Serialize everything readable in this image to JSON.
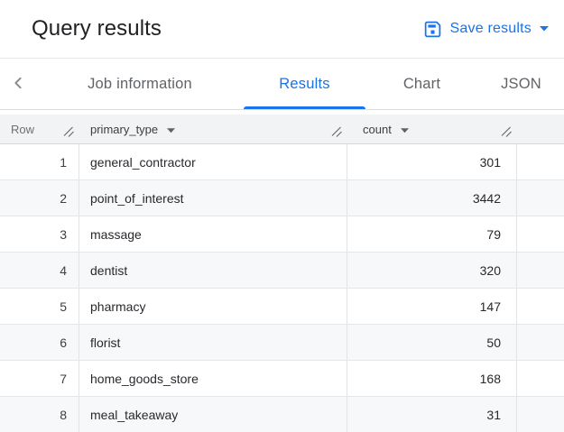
{
  "header": {
    "title": "Query results",
    "save_button_label": "Save results"
  },
  "tabs": [
    {
      "label": "Job information",
      "active": false
    },
    {
      "label": "Results",
      "active": true
    },
    {
      "label": "Chart",
      "active": false
    },
    {
      "label": "JSON",
      "active": false
    }
  ],
  "table": {
    "columns": [
      {
        "name": "Row",
        "sortable": false,
        "resizable": true
      },
      {
        "name": "primary_type",
        "sortable": true,
        "resizable": true
      },
      {
        "name": "count",
        "sortable": true,
        "resizable": true
      }
    ],
    "rows": [
      {
        "row": "1",
        "primary_type": "general_contractor",
        "count": "301"
      },
      {
        "row": "2",
        "primary_type": "point_of_interest",
        "count": "3442"
      },
      {
        "row": "3",
        "primary_type": "massage",
        "count": "79"
      },
      {
        "row": "4",
        "primary_type": "dentist",
        "count": "320"
      },
      {
        "row": "5",
        "primary_type": "pharmacy",
        "count": "147"
      },
      {
        "row": "6",
        "primary_type": "florist",
        "count": "50"
      },
      {
        "row": "7",
        "primary_type": "home_goods_store",
        "count": "168"
      },
      {
        "row": "8",
        "primary_type": "meal_takeaway",
        "count": "31"
      }
    ]
  },
  "colors": {
    "accent": "#1a73e8",
    "header_bg": "#f1f3f4",
    "stripe_bg": "#f7f8f9",
    "border": "#e2e4e6",
    "text_primary": "#202124",
    "text_secondary": "#5f6368"
  }
}
